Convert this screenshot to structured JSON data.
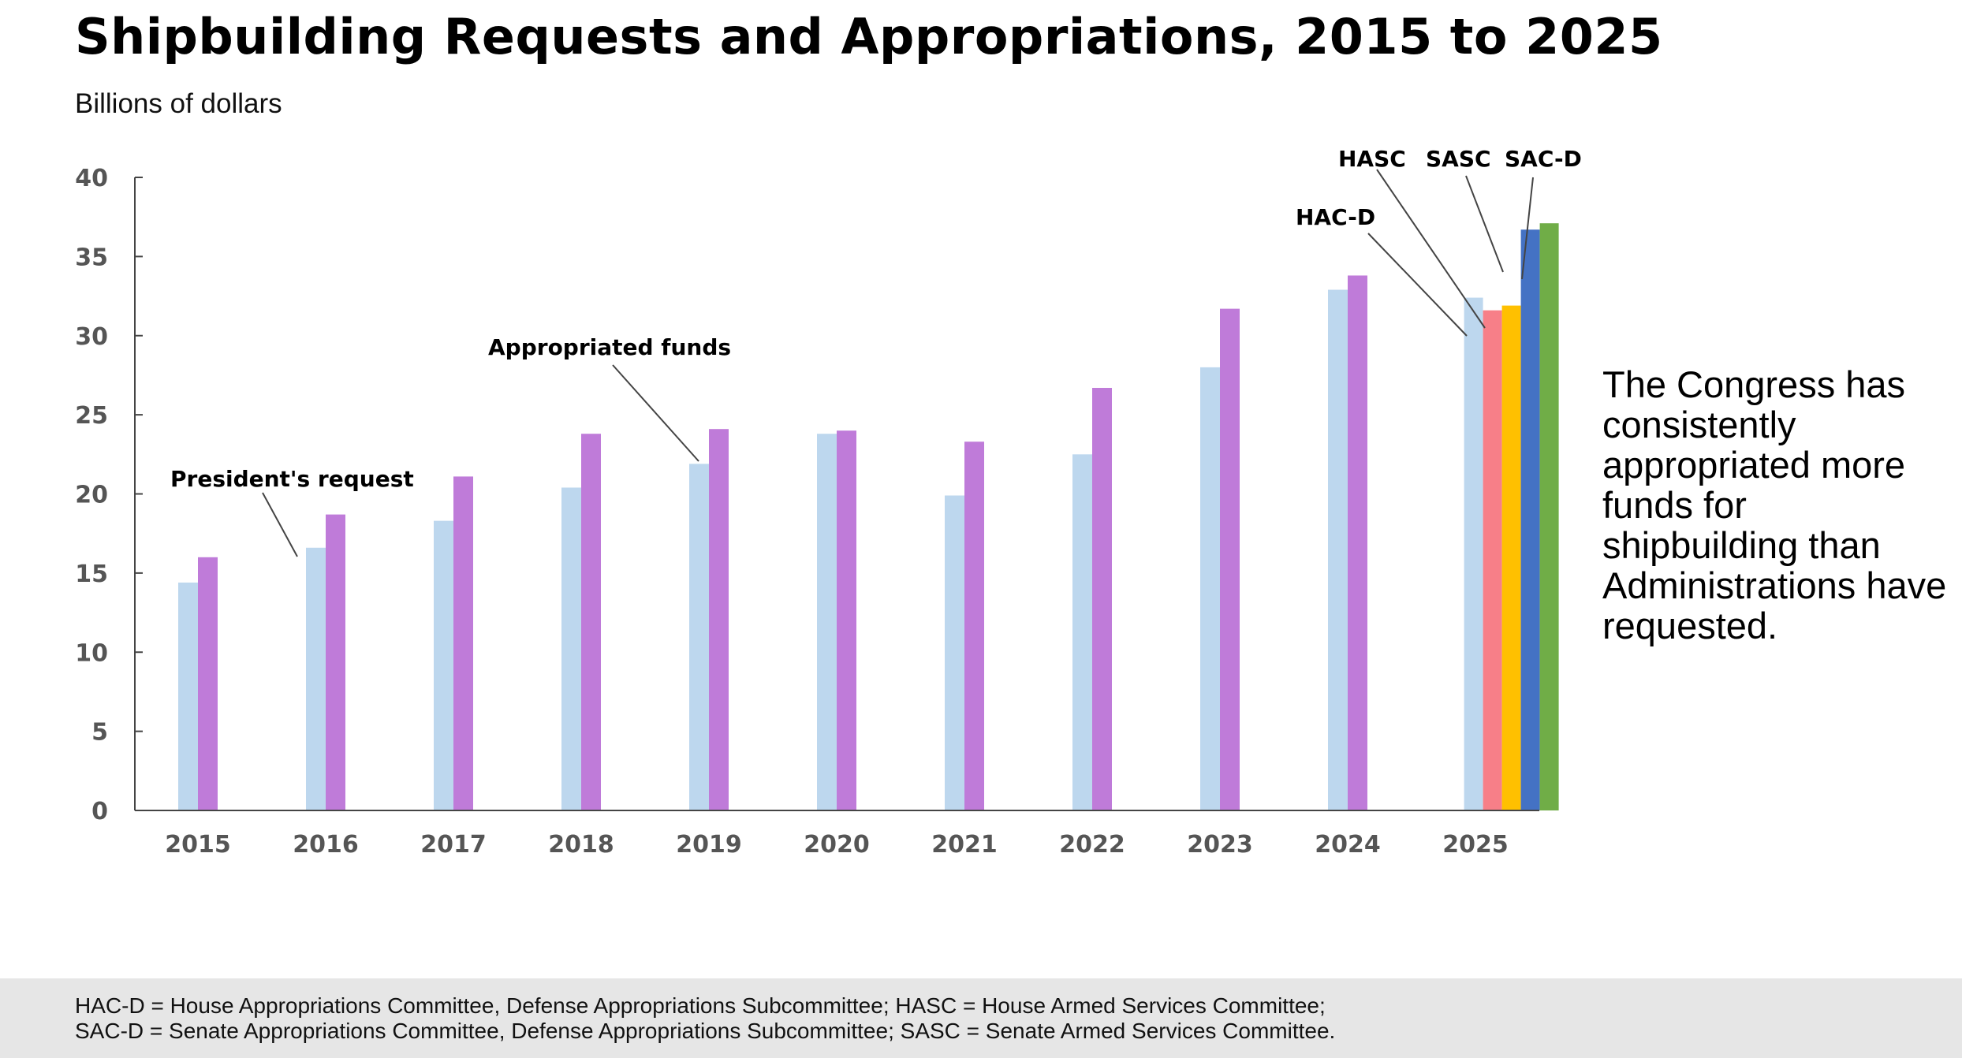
{
  "title": "Shipbuilding Requests and Appropriations, 2015 to 2025",
  "subtitle": "Billions of dollars",
  "side_text": "The Congress has consistently appropriated more funds for shipbuilding than Administrations have requested.",
  "footer": {
    "line1": "HAC-D = House Appropriations Committee, Defense Appropriations Subcommittee; HASC = House Armed Services Committee;",
    "line2": "SAC-D = Senate Appropriations Committee, Defense Appropriations Subcommittee; SASC = Senate Armed Services Committee."
  },
  "chart_data": {
    "type": "bar",
    "title": "Shipbuilding Requests and Appropriations, 2015 to 2025",
    "ylabel": "Billions of dollars",
    "ylim": [
      0,
      40
    ],
    "yticks": [
      "0",
      "5",
      "10",
      "15",
      "20",
      "25",
      "30",
      "35",
      "40"
    ],
    "categories": [
      "2015",
      "2016",
      "2017",
      "2018",
      "2019",
      "2020",
      "2021",
      "2022",
      "2023",
      "2024",
      "2025"
    ],
    "series": [
      {
        "name": "President's request",
        "color": "#bdd7ee",
        "values": [
          14.4,
          16.6,
          18.3,
          20.4,
          21.9,
          23.8,
          19.9,
          22.5,
          28.0,
          32.9,
          32.4
        ]
      },
      {
        "name": "Appropriated funds",
        "color": "#bf7bd9",
        "values": [
          16.0,
          18.7,
          21.1,
          23.8,
          24.1,
          24.0,
          23.3,
          26.7,
          31.7,
          33.8,
          null
        ]
      },
      {
        "name": "HAC-D",
        "color": "#f77f88",
        "values": [
          null,
          null,
          null,
          null,
          null,
          null,
          null,
          null,
          null,
          null,
          31.6
        ]
      },
      {
        "name": "HASC",
        "color": "#ffc000",
        "values": [
          null,
          null,
          null,
          null,
          null,
          null,
          null,
          null,
          null,
          null,
          31.9
        ]
      },
      {
        "name": "SASC",
        "color": "#4472c4",
        "values": [
          null,
          null,
          null,
          null,
          null,
          null,
          null,
          null,
          null,
          null,
          36.7
        ]
      },
      {
        "name": "SAC-D",
        "color": "#70ad47",
        "values": [
          null,
          null,
          null,
          null,
          null,
          null,
          null,
          null,
          null,
          null,
          37.1
        ]
      }
    ],
    "annotations": {
      "presidents_request": "President's request",
      "appropriated_funds": "Appropriated funds",
      "hacd": "HAC-D",
      "hasc": "HASC",
      "sasc": "SASC",
      "sacd": "SAC-D"
    },
    "grid": false,
    "legend": "none"
  }
}
